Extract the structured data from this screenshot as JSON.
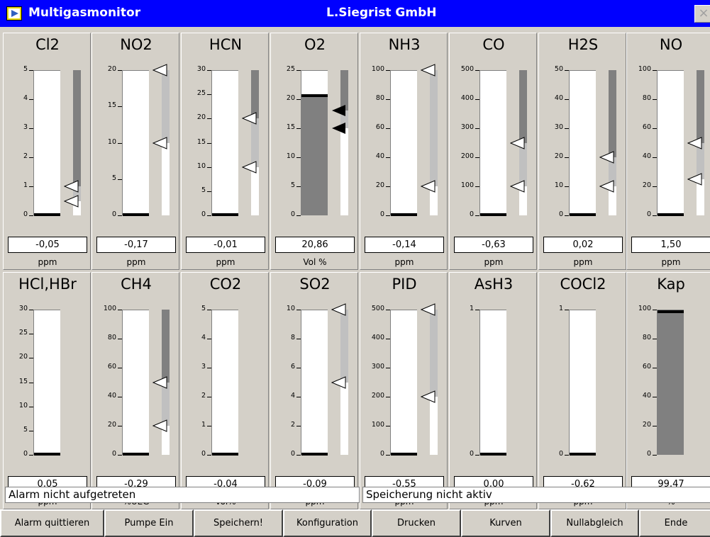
{
  "window": {
    "title": "Multigasmonitor",
    "company": "L.Siegrist GmbH",
    "close_glyph": "×"
  },
  "colors": {
    "titlebar": "#0000ff",
    "track": "#ffffff",
    "fill": "#808080",
    "side_dark": "#808080",
    "side_light": "#c0c0c0",
    "level": "#000000"
  },
  "gauges": [
    {
      "name": "Cl2",
      "ticks": [
        "5",
        "4",
        "3",
        "2",
        "1",
        "0"
      ],
      "max": 5,
      "value": "-0,05",
      "unit": "ppm",
      "reading": -0.05,
      "alarms": [
        1.0,
        0.5
      ],
      "alarm_style": "outline",
      "side_bar": true,
      "fill": false
    },
    {
      "name": "NO2",
      "ticks": [
        "20",
        "15",
        "10",
        "5",
        "0"
      ],
      "max": 20,
      "value": "-0,17",
      "unit": "ppm",
      "reading": -0.17,
      "alarms": [
        20,
        10
      ],
      "alarm_style": "outline",
      "side_bar": true,
      "fill": false
    },
    {
      "name": "HCN",
      "ticks": [
        "30",
        "25",
        "20",
        "15",
        "10",
        "5",
        "0"
      ],
      "max": 30,
      "value": "-0,01",
      "unit": "ppm",
      "reading": -0.01,
      "alarms": [
        20,
        10
      ],
      "alarm_style": "outline",
      "side_bar": true,
      "fill": false
    },
    {
      "name": "O2",
      "ticks": [
        "25",
        "20",
        "15",
        "10",
        "5",
        "0"
      ],
      "max": 25,
      "value": "20,86",
      "unit": "Vol %",
      "reading": 20.86,
      "alarms": [
        18,
        15
      ],
      "alarm_style": "solid",
      "side_bar": true,
      "fill": true
    },
    {
      "name": "NH3",
      "ticks": [
        "100",
        "80",
        "60",
        "40",
        "20",
        "0"
      ],
      "max": 100,
      "value": "-0,14",
      "unit": "ppm",
      "reading": -0.14,
      "alarms": [
        100,
        20
      ],
      "alarm_style": "outline",
      "side_bar": true,
      "fill": false
    },
    {
      "name": "CO",
      "ticks": [
        "500",
        "400",
        "300",
        "200",
        "100",
        "0"
      ],
      "max": 500,
      "value": "-0,63",
      "unit": "ppm",
      "reading": -0.63,
      "alarms": [
        250,
        100
      ],
      "alarm_style": "outline",
      "side_bar": true,
      "fill": false
    },
    {
      "name": "H2S",
      "ticks": [
        "50",
        "40",
        "30",
        "20",
        "10",
        "0"
      ],
      "max": 50,
      "value": "0,02",
      "unit": "ppm",
      "reading": 0.02,
      "alarms": [
        20,
        10
      ],
      "alarm_style": "outline",
      "side_bar": true,
      "fill": false
    },
    {
      "name": "NO",
      "ticks": [
        "100",
        "80",
        "60",
        "40",
        "20",
        "0"
      ],
      "max": 100,
      "value": "1,50",
      "unit": "ppm",
      "reading": 1.5,
      "alarms": [
        50,
        25
      ],
      "alarm_style": "outline",
      "side_bar": true,
      "fill": false
    },
    {
      "name": "HCl,HBr",
      "ticks": [
        "30",
        "25",
        "20",
        "15",
        "10",
        "5",
        "0"
      ],
      "max": 30,
      "value": "0,05",
      "unit": "ppm",
      "reading": 0.05,
      "alarms": [],
      "alarm_style": "outline",
      "side_bar": false,
      "fill": false
    },
    {
      "name": "CH4",
      "ticks": [
        "100",
        "80",
        "60",
        "40",
        "20",
        "0"
      ],
      "max": 100,
      "value": "-0,29",
      "unit": "%UEG",
      "reading": -0.29,
      "alarms": [
        50,
        20
      ],
      "alarm_style": "outline",
      "side_bar": true,
      "fill": false
    },
    {
      "name": "CO2",
      "ticks": [
        "5",
        "4",
        "3",
        "2",
        "1",
        "0"
      ],
      "max": 5,
      "value": "-0,04",
      "unit": "Vol%",
      "reading": -0.04,
      "alarms": [],
      "alarm_style": "outline",
      "side_bar": false,
      "fill": false
    },
    {
      "name": "SO2",
      "ticks": [
        "10",
        "8",
        "6",
        "4",
        "2",
        "0"
      ],
      "max": 10,
      "value": "-0,09",
      "unit": "ppm",
      "reading": -0.09,
      "alarms": [
        10,
        5
      ],
      "alarm_style": "outline",
      "side_bar": true,
      "fill": false
    },
    {
      "name": "PID",
      "ticks": [
        "500",
        "400",
        "300",
        "200",
        "100",
        "0"
      ],
      "max": 500,
      "value": "-0,55",
      "unit": "ppm",
      "reading": -0.55,
      "alarms": [
        500,
        200
      ],
      "alarm_style": "outline",
      "side_bar": true,
      "fill": false
    },
    {
      "name": "AsH3",
      "ticks": [
        "1",
        "0"
      ],
      "max": 1,
      "value": "0,00",
      "unit": "ppm",
      "reading": 0.0,
      "alarms": [],
      "alarm_style": "outline",
      "side_bar": false,
      "fill": false
    },
    {
      "name": "COCl2",
      "ticks": [
        "1",
        "0"
      ],
      "max": 1,
      "value": "-0,62",
      "unit": "ppm",
      "reading": -0.62,
      "alarms": [],
      "alarm_style": "outline",
      "side_bar": false,
      "fill": false
    },
    {
      "name": "Kap",
      "ticks": [
        "100",
        "80",
        "60",
        "40",
        "20",
        "0"
      ],
      "max": 100,
      "value": "99,47",
      "unit": "%",
      "reading": 99.47,
      "alarms": [],
      "alarm_style": "outline",
      "side_bar": false,
      "fill": true
    }
  ],
  "status": {
    "alarm": "Alarm  nicht aufgetreten",
    "storage": "Speicherung  nicht aktiv"
  },
  "buttons": [
    "Alarm quittieren",
    "Pumpe Ein",
    "Speichern!",
    "Konfiguration",
    "Drucken",
    "Kurven",
    "Nullabgleich",
    "Ende"
  ]
}
